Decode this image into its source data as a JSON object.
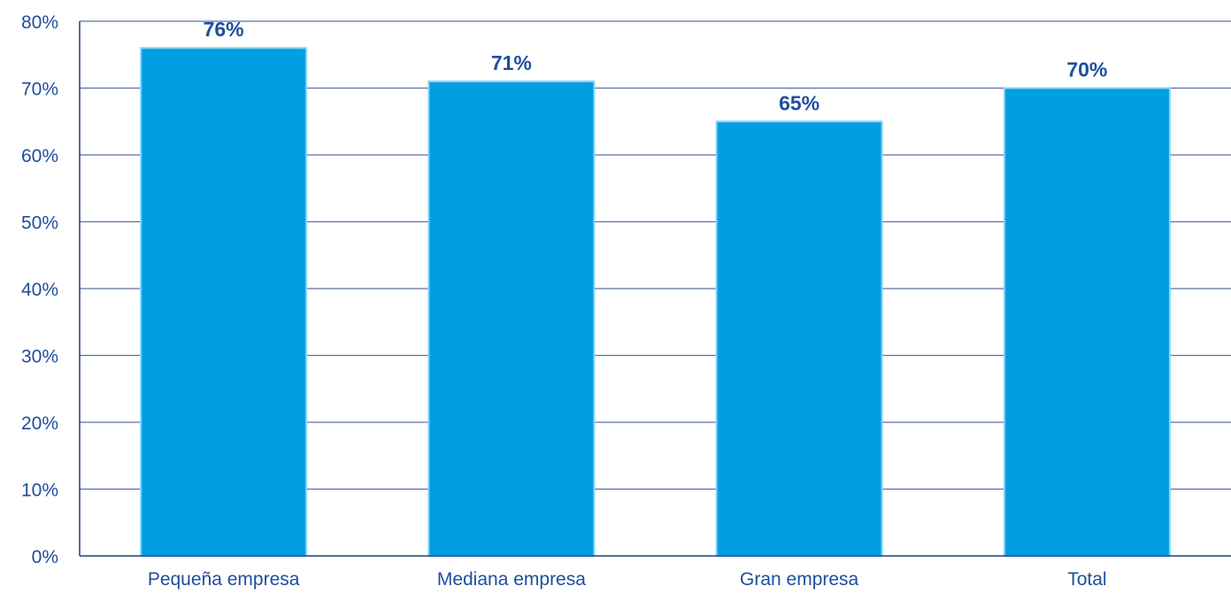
{
  "chart_data": {
    "type": "bar",
    "categories": [
      "Pequeña empresa",
      "Mediana empresa",
      "Gran empresa",
      "Total"
    ],
    "values": [
      76,
      71,
      65,
      70
    ],
    "data_labels": [
      "76%",
      "71%",
      "65%",
      "70%"
    ],
    "y_ticks": [
      "0%",
      "10%",
      "20%",
      "30%",
      "40%",
      "50%",
      "60%",
      "70%",
      "80%"
    ],
    "ylim": [
      0,
      80
    ],
    "grid": true,
    "legend": "none",
    "bar_color": "#009fe3",
    "bar_border_color": "#8fd3f2",
    "label_color": "#1f4e9c",
    "grid_color": "#5a6fa8"
  }
}
